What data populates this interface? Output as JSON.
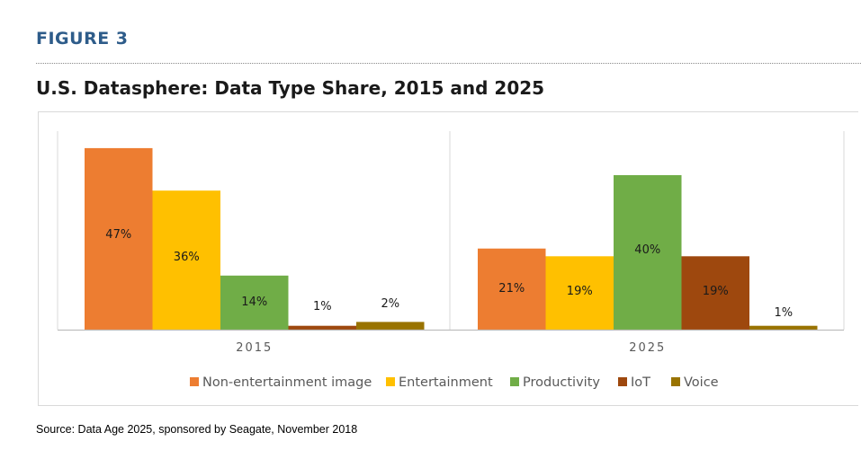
{
  "figure": {
    "label": "FIGURE 3"
  },
  "chart_data": {
    "type": "bar",
    "title": "U.S. Datasphere: Data Type Share, 2015 and 2025",
    "categories": [
      "2015",
      "2025"
    ],
    "series": [
      {
        "name": "Non-entertainment image",
        "color": "#ed7d31",
        "values": [
          47,
          21
        ],
        "labels": [
          "47%",
          "21%"
        ]
      },
      {
        "name": "Entertainment",
        "color": "#ffc000",
        "values": [
          36,
          19
        ],
        "labels": [
          "36%",
          "19%"
        ]
      },
      {
        "name": "Productivity",
        "color": "#70ad47",
        "values": [
          14,
          40
        ],
        "labels": [
          "14%",
          "40%"
        ]
      },
      {
        "name": "IoT",
        "color": "#9e480e",
        "values": [
          1,
          19
        ],
        "labels": [
          "1%",
          "19%"
        ]
      },
      {
        "name": "Voice",
        "color": "#997300",
        "values": [
          2,
          1
        ],
        "labels": [
          "2%",
          "1%"
        ]
      }
    ],
    "xlabel": "",
    "ylabel": "",
    "ylim": [
      0,
      50
    ],
    "legend": "bottom",
    "grid": false
  },
  "source": "Source: Data Age 2025, sponsored by Seagate, November 2018"
}
